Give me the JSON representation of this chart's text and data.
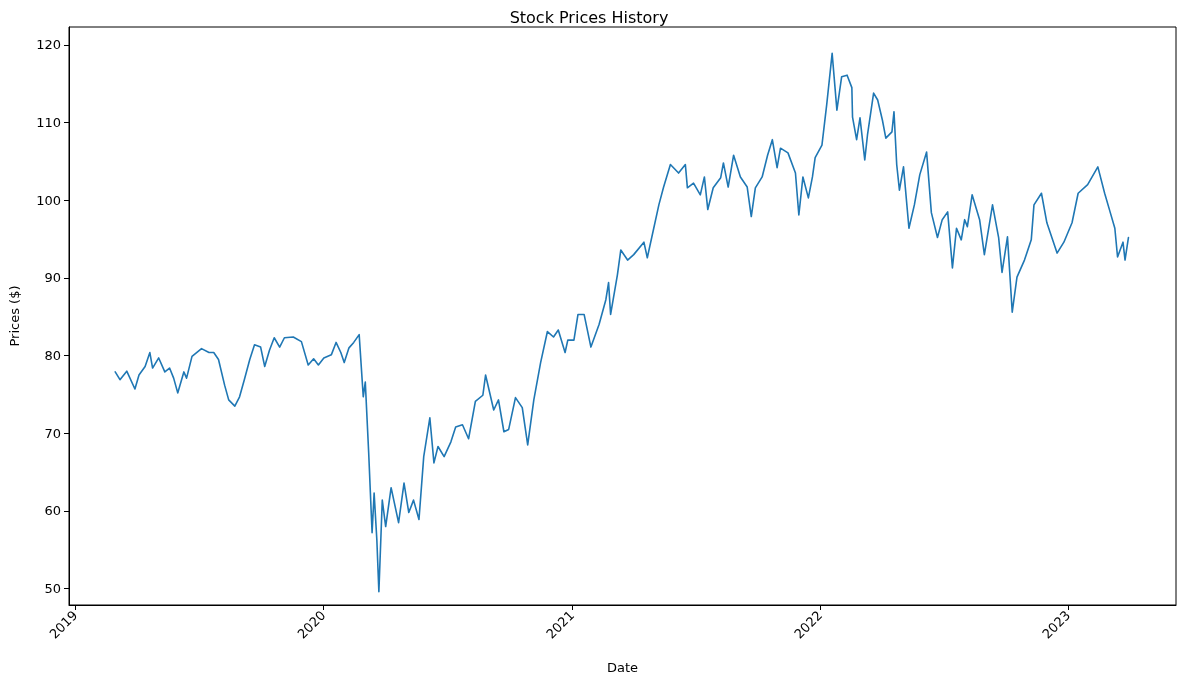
{
  "chart_data": {
    "type": "line",
    "title": "Stock Prices History",
    "xlabel": "Date",
    "ylabel": "Prices ($)",
    "xlim": [
      "2018-12-23",
      "2023-06-09"
    ],
    "ylim": [
      47.9,
      122.3
    ],
    "xticks": [
      "2019",
      "2020",
      "2021",
      "2022",
      "2023"
    ],
    "yticks": [
      50,
      60,
      70,
      80,
      90,
      100,
      110,
      120
    ],
    "grid": false,
    "marker": "none",
    "line_style": "solid",
    "series": [
      {
        "color": "#1f77b4",
        "x": [
          "2019-03-01",
          "2019-03-08",
          "2019-03-18",
          "2019-03-30",
          "2019-04-05",
          "2019-04-14",
          "2019-04-21",
          "2019-04-25",
          "2019-05-04",
          "2019-05-13",
          "2019-05-20",
          "2019-05-26",
          "2019-06-01",
          "2019-06-10",
          "2019-06-14",
          "2019-06-22",
          "2019-07-06",
          "2019-07-17",
          "2019-07-24",
          "2019-07-31",
          "2019-08-09",
          "2019-08-15",
          "2019-08-24",
          "2019-08-31",
          "2019-09-07",
          "2019-09-15",
          "2019-09-22",
          "2019-10-01",
          "2019-10-07",
          "2019-10-14",
          "2019-10-21",
          "2019-10-29",
          "2019-11-05",
          "2019-11-18",
          "2019-11-30",
          "2019-12-10",
          "2019-12-18",
          "2019-12-25",
          "2020-01-02",
          "2020-01-13",
          "2020-01-20",
          "2020-01-27",
          "2020-02-01",
          "2020-02-08",
          "2020-02-15",
          "2020-02-23",
          "2020-02-29",
          "2020-03-03",
          "2020-03-08",
          "2020-03-13",
          "2020-03-16",
          "2020-03-20",
          "2020-03-23",
          "2020-03-28",
          "2020-04-02",
          "2020-04-10",
          "2020-04-21",
          "2020-04-29",
          "2020-05-06",
          "2020-05-13",
          "2020-05-21",
          "2020-05-28",
          "2020-06-06",
          "2020-06-12",
          "2020-06-18",
          "2020-06-27",
          "2020-07-07",
          "2020-07-14",
          "2020-07-24",
          "2020-08-02",
          "2020-08-12",
          "2020-08-23",
          "2020-08-27",
          "2020-09-08",
          "2020-09-15",
          "2020-09-23",
          "2020-09-30",
          "2020-10-10",
          "2020-10-20",
          "2020-10-28",
          "2020-11-06",
          "2020-11-16",
          "2020-11-26",
          "2020-12-05",
          "2020-12-12",
          "2020-12-22",
          "2020-12-26",
          "2021-01-04",
          "2021-01-10",
          "2021-01-19",
          "2021-01-29",
          "2021-02-10",
          "2021-02-20",
          "2021-02-24",
          "2021-02-27",
          "2021-03-09",
          "2021-03-14",
          "2021-03-24",
          "2021-04-02",
          "2021-04-17",
          "2021-04-22",
          "2021-05-01",
          "2021-05-09",
          "2021-05-16",
          "2021-05-26",
          "2021-06-07",
          "2021-06-17",
          "2021-06-20",
          "2021-06-29",
          "2021-07-09",
          "2021-07-15",
          "2021-07-20",
          "2021-07-28",
          "2021-08-08",
          "2021-08-12",
          "2021-08-19",
          "2021-08-27",
          "2021-09-06",
          "2021-09-16",
          "2021-09-22",
          "2021-09-28",
          "2021-10-08",
          "2021-10-16",
          "2021-10-23",
          "2021-10-30",
          "2021-11-04",
          "2021-11-15",
          "2021-11-26",
          "2021-12-01",
          "2021-12-07",
          "2021-12-15",
          "2021-12-21",
          "2021-12-25",
          "2022-01-04",
          "2022-01-11",
          "2022-01-19",
          "2022-01-26",
          "2022-02-02",
          "2022-02-10",
          "2022-02-17",
          "2022-02-18",
          "2022-02-24",
          "2022-03-01",
          "2022-03-08",
          "2022-03-12",
          "2022-03-21",
          "2022-03-27",
          "2022-04-03",
          "2022-04-08",
          "2022-04-17",
          "2022-04-20",
          "2022-04-24",
          "2022-04-28",
          "2022-05-04",
          "2022-05-12",
          "2022-05-20",
          "2022-05-28",
          "2022-06-07",
          "2022-06-14",
          "2022-06-23",
          "2022-06-30",
          "2022-07-08",
          "2022-07-15",
          "2022-07-21",
          "2022-07-28",
          "2022-08-02",
          "2022-08-06",
          "2022-08-13",
          "2022-08-24",
          "2022-08-31",
          "2022-09-12",
          "2022-09-21",
          "2022-09-26",
          "2022-10-04",
          "2022-10-11",
          "2022-10-18",
          "2022-10-29",
          "2022-11-08",
          "2022-11-12",
          "2022-11-23",
          "2022-12-01",
          "2022-12-16",
          "2022-12-26",
          "2023-01-07",
          "2023-01-16",
          "2023-01-30",
          "2023-02-14",
          "2023-02-24",
          "2023-03-04",
          "2023-03-11",
          "2023-03-15",
          "2023-03-23",
          "2023-03-26",
          "2023-03-31"
        ],
        "values": [
          77.9,
          76.9,
          78.0,
          75.7,
          77.5,
          78.6,
          80.4,
          78.4,
          79.7,
          77.9,
          78.4,
          77.1,
          75.2,
          77.9,
          77.1,
          79.9,
          80.9,
          80.4,
          80.4,
          79.5,
          76.2,
          74.3,
          73.5,
          74.7,
          76.9,
          79.5,
          81.4,
          81.1,
          78.6,
          80.7,
          82.3,
          81.1,
          82.3,
          82.4,
          81.8,
          78.8,
          79.6,
          78.8,
          79.7,
          80.1,
          81.7,
          80.4,
          79.1,
          81.0,
          81.7,
          82.7,
          74.7,
          76.6,
          67.5,
          57.2,
          62.3,
          56.3,
          49.6,
          61.4,
          58.0,
          63.0,
          58.5,
          63.6,
          59.8,
          61.4,
          58.9,
          67.0,
          72.0,
          66.2,
          68.3,
          67.0,
          68.9,
          70.8,
          71.1,
          69.3,
          74.1,
          74.9,
          77.5,
          73.0,
          74.3,
          70.2,
          70.5,
          74.6,
          73.3,
          68.5,
          74.3,
          79.1,
          83.1,
          82.4,
          83.3,
          80.4,
          82.0,
          82.0,
          85.3,
          85.3,
          81.1,
          84.0,
          87.2,
          89.4,
          85.3,
          90.4,
          93.6,
          92.3,
          93.0,
          94.6,
          92.6,
          96.2,
          99.4,
          101.7,
          104.6,
          103.5,
          104.6,
          101.6,
          102.2,
          100.7,
          103.0,
          98.8,
          101.6,
          102.9,
          104.8,
          101.7,
          105.8,
          103.0,
          101.7,
          97.9,
          101.6,
          103.0,
          105.8,
          107.8,
          104.2,
          106.7,
          106.1,
          103.5,
          98.1,
          103.0,
          100.3,
          103.0,
          105.5,
          107.1,
          112.3,
          118.9,
          111.6,
          115.9,
          116.1,
          114.5,
          110.7,
          107.8,
          110.6,
          105.2,
          108.4,
          113.8,
          112.9,
          110.3,
          108.0,
          108.8,
          111.4,
          104.6,
          101.3,
          104.3,
          96.4,
          99.4,
          103.3,
          106.2,
          98.4,
          95.2,
          97.5,
          98.5,
          91.3,
          96.4,
          94.9,
          97.5,
          96.6,
          100.7,
          97.5,
          93.0,
          99.4,
          95.2,
          90.7,
          95.3,
          85.6,
          90.1,
          92.3,
          94.9,
          99.4,
          100.9,
          97.1,
          93.2,
          94.6,
          97.1,
          100.9,
          102.0,
          104.3,
          100.9,
          98.5,
          96.4,
          92.7,
          94.6,
          92.3,
          95.2
        ]
      }
    ]
  }
}
